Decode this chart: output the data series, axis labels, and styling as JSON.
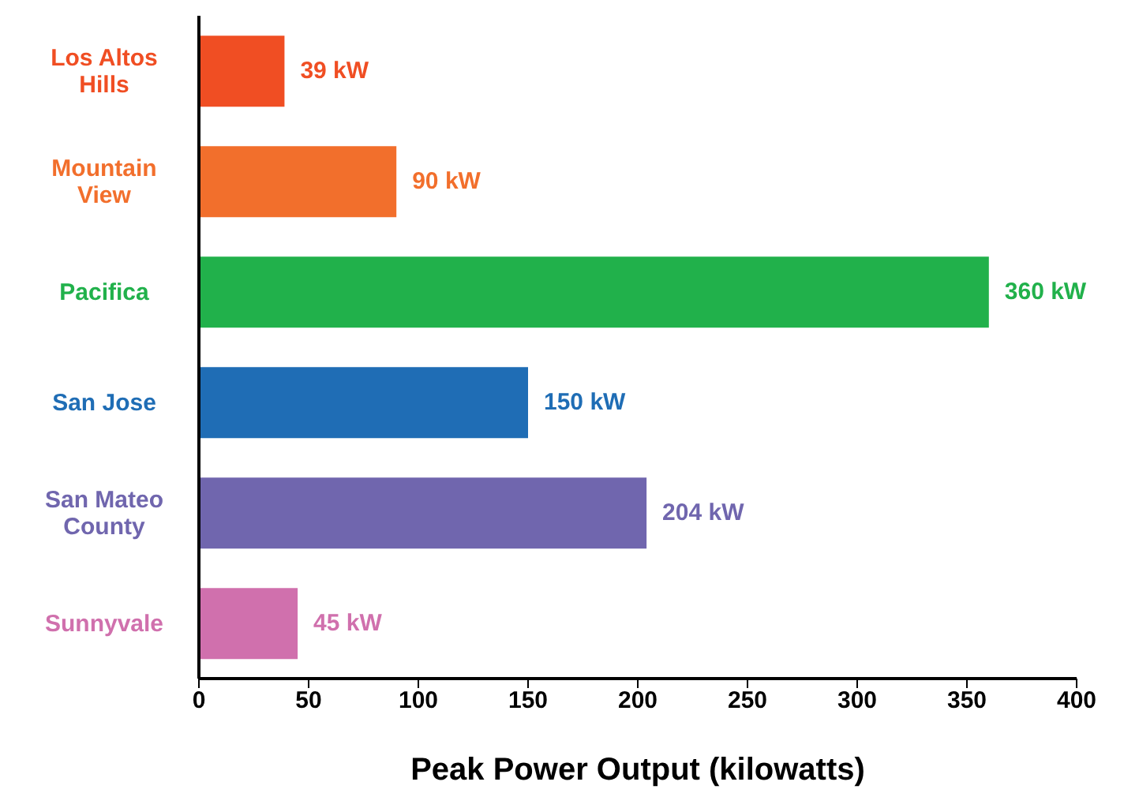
{
  "chart_data": {
    "type": "bar",
    "orientation": "horizontal",
    "xlabel": "Peak Power Output (kilowatts)",
    "categories": [
      "Los Altos Hills",
      "Mountain View",
      "Pacifica",
      "San Jose",
      "San Mateo County",
      "Sunnyvale"
    ],
    "values": [
      39,
      90,
      360,
      150,
      204,
      45
    ],
    "colors": [
      "#f04e23",
      "#f26f2c",
      "#21b14b",
      "#1f6db5",
      "#7066ae",
      "#d070ad"
    ],
    "value_labels": [
      "39 kW",
      "90 kW",
      "360 kW",
      "150 kW",
      "204 kW",
      "45 kW"
    ],
    "xlim": [
      0,
      400
    ],
    "xticks": [
      0,
      50,
      100,
      150,
      200,
      250,
      300,
      350,
      400
    ],
    "grid": false,
    "legend": false
  }
}
